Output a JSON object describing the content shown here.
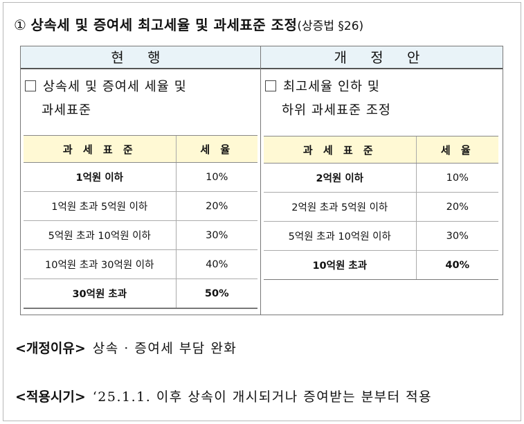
{
  "title": {
    "number": "①",
    "text": "상속세 및 증여세 최고세율 및 과세표준 조정",
    "law": "(상증법 §26)"
  },
  "current": {
    "header": "현 행",
    "item_line1": "상속세 및 증여세 세율 및",
    "item_line2": "과세표준",
    "table_headers": [
      "과 세 표 준",
      "세 율"
    ],
    "rows": [
      [
        "1억원 이하",
        "10%"
      ],
      [
        "1억원 초과 5억원 이하",
        "20%"
      ],
      [
        "5억원 초과 10억원 이하",
        "30%"
      ],
      [
        "10억원 초과 30억원 이하",
        "40%"
      ],
      [
        "30억원 초과",
        "50%"
      ]
    ]
  },
  "proposed": {
    "header": "개 정 안",
    "item_line1": "최고세율 인하 및",
    "item_line2": "하위 과세표준 조정",
    "table_headers": [
      "과 세 표 준",
      "세 율"
    ],
    "rows": [
      [
        "2억원 이하",
        "10%"
      ],
      [
        "2억원 초과 5억원 이하",
        "20%"
      ],
      [
        "5억원 초과 10억원 이하",
        "30%"
      ],
      [
        "10억원 초과",
        "40%"
      ]
    ]
  },
  "reason": {
    "label": "<개정이유>",
    "text": "상속 · 증여세 부담 완화"
  },
  "effective": {
    "label": "<적용시기>",
    "text": "‘25.1.1. 이후 상속이 개시되거나 증여받는 분부터 적용"
  }
}
